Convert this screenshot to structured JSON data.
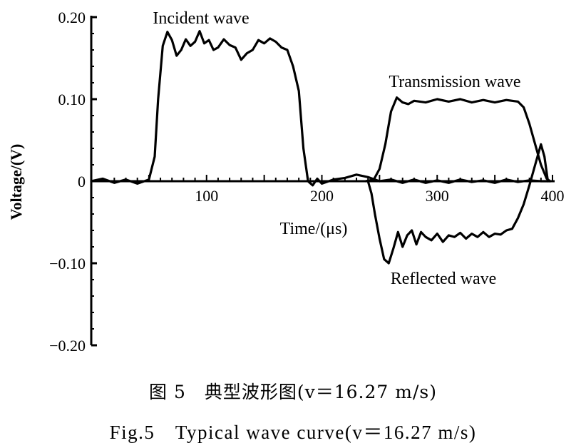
{
  "chart_data": {
    "type": "line",
    "xlabel": "Time/(μs)",
    "ylabel": "Voltage/(V)",
    "xlim": [
      0,
      400
    ],
    "ylim": [
      -0.2,
      0.2
    ],
    "x_ticks": [
      100,
      200,
      300,
      400
    ],
    "x_tick_labels": [
      "100",
      "200",
      "300",
      "400"
    ],
    "y_ticks": [
      0.2,
      0.1,
      0,
      -0.1,
      -0.2
    ],
    "y_tick_labels": [
      "0.20",
      "0.10",
      "0",
      "−0.10",
      "−0.20"
    ],
    "grid": false,
    "series": [
      {
        "name": "Incident wave",
        "x": [
          0,
          10,
          20,
          30,
          40,
          50,
          55,
          58,
          62,
          66,
          70,
          74,
          78,
          82,
          86,
          90,
          94,
          98,
          102,
          106,
          110,
          115,
          120,
          125,
          130,
          135,
          140,
          145,
          150,
          155,
          160,
          165,
          170,
          175,
          180,
          184,
          188,
          192,
          196,
          200,
          210,
          220,
          230,
          240,
          250,
          260,
          270,
          280,
          290,
          300,
          310,
          320,
          330,
          340,
          350,
          360,
          370,
          380,
          390,
          398
        ],
        "values": [
          0,
          0.003,
          -0.002,
          0.002,
          -0.003,
          0.002,
          0.03,
          0.1,
          0.165,
          0.182,
          0.172,
          0.153,
          0.16,
          0.173,
          0.165,
          0.17,
          0.183,
          0.168,
          0.172,
          0.16,
          0.163,
          0.173,
          0.166,
          0.163,
          0.148,
          0.156,
          0.16,
          0.172,
          0.168,
          0.174,
          0.17,
          0.163,
          0.16,
          0.14,
          0.11,
          0.04,
          0.0,
          -0.005,
          0.003,
          -0.003,
          0.002,
          0.004,
          0.008,
          0.005,
          0.0,
          0.002,
          -0.002,
          0.002,
          -0.002,
          0.001,
          -0.002,
          0.002,
          -0.001,
          0.001,
          -0.002,
          0.002,
          -0.001,
          0.001,
          0.0,
          0.0
        ]
      },
      {
        "name": "Transmission wave",
        "x": [
          238,
          245,
          250,
          255,
          260,
          265,
          270,
          275,
          280,
          290,
          300,
          310,
          320,
          330,
          340,
          350,
          360,
          370,
          375,
          380,
          385,
          390,
          395,
          398
        ],
        "values": [
          0,
          0.002,
          0.015,
          0.045,
          0.085,
          0.102,
          0.096,
          0.094,
          0.098,
          0.096,
          0.1,
          0.097,
          0.1,
          0.096,
          0.099,
          0.096,
          0.099,
          0.097,
          0.09,
          0.07,
          0.045,
          0.02,
          0.003,
          0.0
        ]
      },
      {
        "name": "Reflected wave",
        "x": [
          240,
          243,
          246,
          250,
          254,
          258,
          262,
          266,
          270,
          274,
          278,
          282,
          286,
          290,
          295,
          300,
          305,
          310,
          315,
          320,
          325,
          330,
          335,
          340,
          345,
          350,
          355,
          360,
          365,
          370,
          375,
          380,
          385,
          390,
          393,
          396
        ],
        "values": [
          0,
          -0.015,
          -0.04,
          -0.07,
          -0.095,
          -0.1,
          -0.082,
          -0.062,
          -0.08,
          -0.066,
          -0.06,
          -0.077,
          -0.062,
          -0.068,
          -0.072,
          -0.064,
          -0.074,
          -0.066,
          -0.068,
          -0.063,
          -0.07,
          -0.064,
          -0.068,
          -0.062,
          -0.068,
          -0.064,
          -0.065,
          -0.06,
          -0.058,
          -0.045,
          -0.028,
          -0.005,
          0.02,
          0.045,
          0.03,
          0.0
        ]
      }
    ],
    "annotations": [
      {
        "text": "Incident wave",
        "x": 130,
        "y": 0.195
      },
      {
        "text": "Transmission wave",
        "x": 325,
        "y": 0.11
      },
      {
        "text": "Reflected wave",
        "x": 330,
        "y": -0.115
      },
      {
        "text": "Time/(μs)",
        "x": 218,
        "y": -0.055
      }
    ]
  },
  "caption": {
    "chinese": "图 5　典型波形图(v＝16.27 m/s)",
    "english": "Fig.5　Typical wave curve(v＝16.27 m/s)"
  }
}
